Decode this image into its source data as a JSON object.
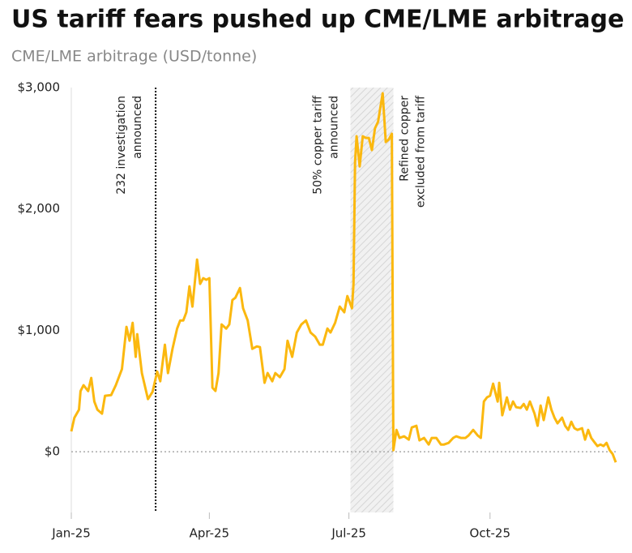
{
  "chart_data": {
    "type": "line",
    "title": "US tariff fears pushed up CME/LME arbitrage",
    "subtitle": "CME/LME arbitrage (USD/tonne)",
    "x": [
      0,
      2,
      5,
      6,
      8,
      11,
      13,
      15,
      17,
      20,
      22,
      26,
      29,
      33,
      36,
      38,
      40,
      42,
      43,
      46,
      50,
      53,
      56,
      58,
      61,
      63,
      66,
      69,
      71,
      73,
      75,
      77,
      79,
      82,
      84,
      86,
      88,
      90,
      92,
      94,
      96,
      98,
      101,
      103,
      105,
      107,
      110,
      112,
      115,
      118,
      121,
      123,
      126,
      128,
      131,
      133,
      136,
      139,
      141,
      144,
      147,
      150,
      153,
      156,
      159,
      162,
      164,
      167,
      169,
      172,
      175,
      178,
      180,
      183,
      184,
      185,
      186,
      188,
      190,
      192,
      194,
      196,
      198,
      200,
      203,
      205,
      207,
      209,
      210,
      212,
      214,
      217,
      220,
      222,
      225,
      227,
      230,
      233,
      235,
      238,
      241,
      243,
      246,
      249,
      251,
      254,
      257,
      259,
      262,
      265,
      267,
      269,
      271,
      273,
      275,
      278,
      279,
      281,
      284,
      286,
      288,
      290,
      293,
      295,
      297,
      299,
      302,
      304,
      306,
      308,
      311,
      313,
      315,
      317,
      320,
      322,
      324,
      326,
      328,
      330,
      333,
      335,
      337,
      339,
      341,
      343,
      345,
      347,
      349,
      351,
      353,
      355
    ],
    "series": [
      {
        "color": "#fbb80f",
        "values": [
          167,
          280,
          347,
          500,
          548,
          500,
          608,
          414,
          347,
          314,
          461,
          467,
          548,
          681,
          1029,
          915,
          1062,
          782,
          969,
          648,
          434,
          494,
          661,
          581,
          882,
          648,
          848,
          1015,
          1082,
          1082,
          1149,
          1363,
          1196,
          1583,
          1383,
          1430,
          1416,
          1430,
          528,
          501,
          648,
          1049,
          1015,
          1049,
          1249,
          1269,
          1349,
          1182,
          1082,
          848,
          868,
          862,
          568,
          648,
          581,
          648,
          615,
          681,
          915,
          782,
          982,
          1049,
          1082,
          982,
          949,
          882,
          882,
          1015,
          982,
          1062,
          1196,
          1149,
          1283,
          1182,
          1383,
          2385,
          2599,
          2351,
          2599,
          2585,
          2585,
          2485,
          2665,
          2719,
          2953,
          2552,
          2572,
          2619,
          13,
          180,
          114,
          127,
          100,
          200,
          214,
          94,
          114,
          60,
          114,
          114,
          60,
          60,
          73,
          114,
          127,
          114,
          114,
          134,
          180,
          134,
          114,
          414,
          448,
          461,
          561,
          414,
          568,
          301,
          448,
          347,
          414,
          367,
          361,
          394,
          347,
          414,
          314,
          214,
          381,
          261,
          448,
          347,
          281,
          234,
          281,
          214,
          180,
          247,
          194,
          180,
          194,
          100,
          180,
          114,
          80,
          47,
          60,
          47,
          73,
          13,
          -20,
          -87
        ]
      }
    ],
    "xlim": [
      0,
      355
    ],
    "xticks": [
      {
        "value": 0,
        "label": "Jan-25"
      },
      {
        "value": 90,
        "label": "Apr-25"
      },
      {
        "value": 181,
        "label": "Jul-25"
      },
      {
        "value": 273,
        "label": "Oct-25"
      }
    ],
    "ylim": [
      -500,
      3000
    ],
    "yticks": [
      {
        "value": 0,
        "label": "$0"
      },
      {
        "value": 1000,
        "label": "$1,000"
      },
      {
        "value": 2000,
        "label": "$2,000"
      },
      {
        "value": 3000,
        "label": "$3,000"
      }
    ],
    "zero_line": true,
    "annotations": [
      {
        "kind": "event",
        "x": 55,
        "lines": [
          "232 investigation",
          "announced"
        ]
      },
      {
        "kind": "span",
        "x": [
          182,
          210
        ],
        "lines": [
          "50% copper tariff",
          "announced"
        ]
      },
      {
        "kind": "label",
        "x": 210,
        "lines": [
          "Refined copper",
          "excluded from tariff"
        ]
      }
    ]
  }
}
